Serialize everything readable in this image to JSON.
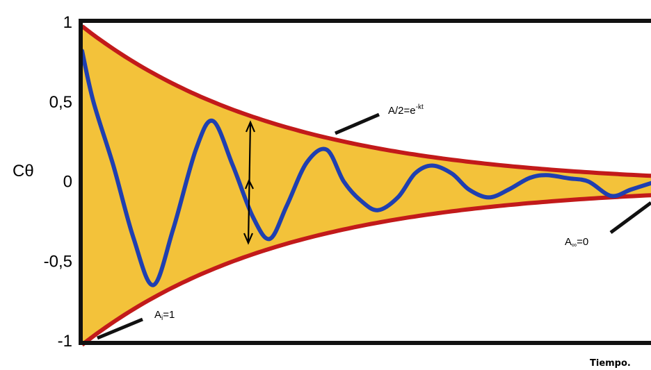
{
  "chart_data": {
    "type": "line",
    "title": "",
    "xlabel": "Tiempo.",
    "ylabel": "Cθ",
    "ylim": [
      -1,
      1
    ],
    "y_ticks": [
      {
        "value": 1,
        "label": "1"
      },
      {
        "value": 0.5,
        "label": "0,5"
      },
      {
        "value": 0,
        "label": "0"
      },
      {
        "value": -0.5,
        "label": "-0,5"
      },
      {
        "value": -1,
        "label": "-1"
      }
    ],
    "x_range": [
      0,
      10
    ],
    "envelope": {
      "amplitude": 1,
      "decay": 0.28,
      "equilibrium": -0.025,
      "band_color": "#f3c23a",
      "line_color": "#c21a1a"
    },
    "series": [
      {
        "color": "#1f3fb0",
        "x": [
          0,
          0.2,
          0.55,
          0.9,
          1.25,
          1.6,
          2.0,
          2.3,
          2.65,
          3.0,
          3.3,
          3.6,
          3.95,
          4.3,
          4.6,
          4.9,
          5.2,
          5.55,
          5.85,
          6.15,
          6.5,
          6.8,
          7.15,
          7.5,
          7.85,
          8.15,
          8.55,
          8.9,
          9.3,
          9.65,
          10.0
        ],
        "values": [
          0.82,
          0.5,
          0.1,
          -0.35,
          -0.65,
          -0.3,
          0.2,
          0.38,
          0.1,
          -0.22,
          -0.36,
          -0.15,
          0.12,
          0.2,
          0.0,
          -0.12,
          -0.18,
          -0.1,
          0.05,
          0.1,
          0.05,
          -0.05,
          -0.1,
          -0.05,
          0.02,
          0.04,
          0.02,
          0.0,
          -0.09,
          -0.05,
          -0.01
        ]
      }
    ],
    "annotations": [
      {
        "text": "A/2=e",
        "superscript": "-kt"
      },
      {
        "text": "A",
        "subscript": "∞",
        "suffix": "=0"
      },
      {
        "text": "A",
        "subscript": "i",
        "suffix": "=1"
      }
    ]
  }
}
